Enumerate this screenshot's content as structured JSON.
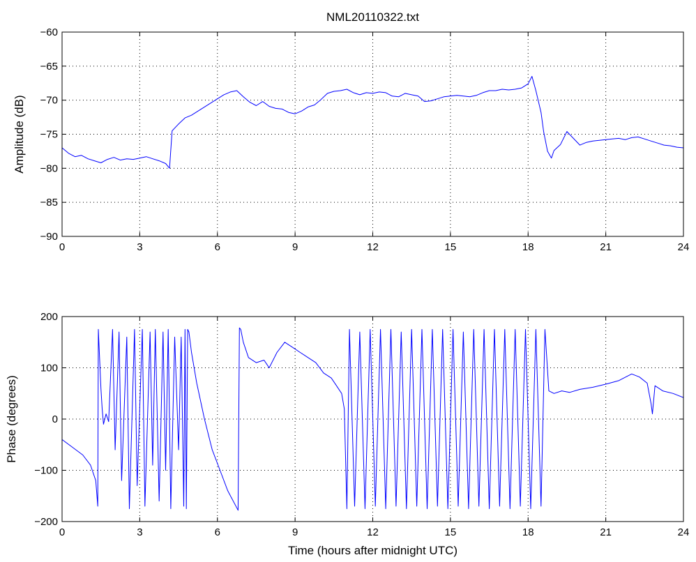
{
  "chart_data": [
    {
      "type": "line",
      "title": "NML20110322.txt",
      "xlabel": "",
      "ylabel": "Amplitude (dB)",
      "xlim": [
        0,
        24
      ],
      "ylim": [
        -90,
        -60
      ],
      "xticks": [
        0,
        3,
        6,
        9,
        12,
        15,
        18,
        21,
        24
      ],
      "yticks": [
        -90,
        -85,
        -80,
        -75,
        -70,
        -65,
        -60
      ],
      "grid": true,
      "color": "#0000ff",
      "series": [
        {
          "x": [
            0,
            0.25,
            0.5,
            0.75,
            1.0,
            1.25,
            1.5,
            1.75,
            2.0,
            2.25,
            2.5,
            2.75,
            3.0,
            3.25,
            3.5,
            3.75,
            4.0,
            4.15,
            4.25,
            4.5,
            4.75,
            5.0,
            5.25,
            5.5,
            5.75,
            6.0,
            6.25,
            6.5,
            6.75,
            7.0,
            7.25,
            7.5,
            7.75,
            8.0,
            8.25,
            8.5,
            8.75,
            9.0,
            9.25,
            9.5,
            9.75,
            10.0,
            10.25,
            10.5,
            10.75,
            11.0,
            11.25,
            11.5,
            11.75,
            12.0,
            12.25,
            12.5,
            12.75,
            13.0,
            13.25,
            13.5,
            13.75,
            14.0,
            14.25,
            14.5,
            14.75,
            15.0,
            15.25,
            15.5,
            15.75,
            16.0,
            16.25,
            16.5,
            16.75,
            17.0,
            17.25,
            17.5,
            17.75,
            18.0,
            18.15,
            18.3,
            18.5,
            18.6,
            18.75,
            18.9,
            19.0,
            19.25,
            19.5,
            19.75,
            20.0,
            20.25,
            20.5,
            20.75,
            21.0,
            21.25,
            21.5,
            21.75,
            22.0,
            22.25,
            22.5,
            22.75,
            23.0,
            23.25,
            23.5,
            23.75,
            24.0
          ],
          "y": [
            -77.0,
            -77.8,
            -78.3,
            -78.1,
            -78.6,
            -78.9,
            -79.2,
            -78.7,
            -78.4,
            -78.8,
            -78.6,
            -78.7,
            -78.5,
            -78.3,
            -78.6,
            -78.9,
            -79.3,
            -80.0,
            -74.5,
            -73.5,
            -72.6,
            -72.2,
            -71.6,
            -71.0,
            -70.4,
            -69.8,
            -69.2,
            -68.8,
            -68.6,
            -69.5,
            -70.3,
            -70.8,
            -70.2,
            -70.9,
            -71.2,
            -71.3,
            -71.8,
            -72.0,
            -71.6,
            -71.0,
            -70.7,
            -69.9,
            -69.0,
            -68.7,
            -68.6,
            -68.4,
            -68.9,
            -69.2,
            -68.9,
            -69.0,
            -68.8,
            -68.9,
            -69.4,
            -69.5,
            -69.0,
            -69.2,
            -69.4,
            -70.2,
            -70.1,
            -69.8,
            -69.5,
            -69.4,
            -69.3,
            -69.4,
            -69.5,
            -69.3,
            -68.9,
            -68.6,
            -68.6,
            -68.4,
            -68.5,
            -68.4,
            -68.2,
            -67.6,
            -66.5,
            -68.6,
            -71.8,
            -74.6,
            -77.5,
            -78.5,
            -77.4,
            -76.5,
            -74.6,
            -75.6,
            -76.6,
            -76.2,
            -76.0,
            -75.9,
            -75.8,
            -75.7,
            -75.6,
            -75.8,
            -75.5,
            -75.4,
            -75.7,
            -76.0,
            -76.3,
            -76.6,
            -76.7,
            -76.9,
            -77.0
          ]
        }
      ]
    },
    {
      "type": "line",
      "title": "",
      "xlabel": "Time (hours after midnight UTC)",
      "ylabel": "Phase (degrees)",
      "xlim": [
        0,
        24
      ],
      "ylim": [
        -200,
        200
      ],
      "xticks": [
        0,
        3,
        6,
        9,
        12,
        15,
        18,
        21,
        24
      ],
      "yticks": [
        -200,
        -100,
        0,
        100,
        200
      ],
      "grid": true,
      "color": "#0000ff",
      "series": [
        {
          "x": [
            0,
            0.4,
            0.8,
            1.1,
            1.3,
            1.38,
            1.4,
            1.5,
            1.55,
            1.6,
            1.7,
            1.8,
            1.95,
            2.05,
            2.2,
            2.3,
            2.5,
            2.6,
            2.8,
            2.9,
            3.1,
            3.2,
            3.4,
            3.5,
            3.6,
            3.75,
            3.9,
            4.0,
            4.1,
            4.2,
            4.35,
            4.5,
            4.6,
            4.7,
            4.75,
            4.8,
            4.85,
            4.9,
            5.0,
            5.2,
            5.5,
            5.8,
            6.1,
            6.4,
            6.8,
            6.85,
            6.9,
            7.0,
            7.2,
            7.5,
            7.8,
            8.0,
            8.3,
            8.6,
            8.9,
            9.2,
            9.5,
            9.8,
            10.1,
            10.4,
            10.6,
            10.8,
            10.9,
            11.0,
            11.1,
            11.3,
            11.5,
            11.7,
            11.9,
            12.1,
            12.3,
            12.5,
            12.7,
            12.9,
            13.1,
            13.3,
            13.5,
            13.7,
            13.9,
            14.1,
            14.3,
            14.5,
            14.7,
            14.9,
            15.1,
            15.3,
            15.5,
            15.7,
            15.9,
            16.1,
            16.3,
            16.5,
            16.7,
            16.9,
            17.1,
            17.3,
            17.5,
            17.7,
            17.9,
            18.1,
            18.3,
            18.5,
            18.65,
            18.8,
            19.0,
            19.3,
            19.6,
            20.0,
            20.5,
            21.0,
            21.5,
            22.0,
            22.3,
            22.6,
            22.75,
            22.8,
            22.9,
            23.2,
            23.6,
            24.0
          ],
          "y": [
            -40,
            -55,
            -70,
            -90,
            -120,
            -170,
            175,
            60,
            20,
            -10,
            10,
            -5,
            175,
            -60,
            170,
            -120,
            160,
            -175,
            175,
            -130,
            175,
            -170,
            170,
            -90,
            175,
            -160,
            170,
            -100,
            175,
            -175,
            160,
            -60,
            160,
            -170,
            175,
            -175,
            175,
            170,
            130,
            70,
            0,
            -60,
            -100,
            -140,
            -178,
            178,
            175,
            150,
            120,
            110,
            115,
            100,
            130,
            150,
            140,
            130,
            120,
            110,
            90,
            80,
            65,
            50,
            20,
            -175,
            175,
            -170,
            170,
            -175,
            175,
            -170,
            175,
            -175,
            175,
            -170,
            170,
            -175,
            175,
            -170,
            175,
            -175,
            175,
            -170,
            175,
            -175,
            175,
            -170,
            170,
            -175,
            175,
            -170,
            175,
            -175,
            175,
            -170,
            175,
            -175,
            175,
            -170,
            175,
            -175,
            175,
            -170,
            175,
            55,
            50,
            55,
            52,
            58,
            62,
            68,
            75,
            88,
            82,
            70,
            30,
            10,
            65,
            55,
            50,
            42
          ]
        }
      ]
    }
  ]
}
